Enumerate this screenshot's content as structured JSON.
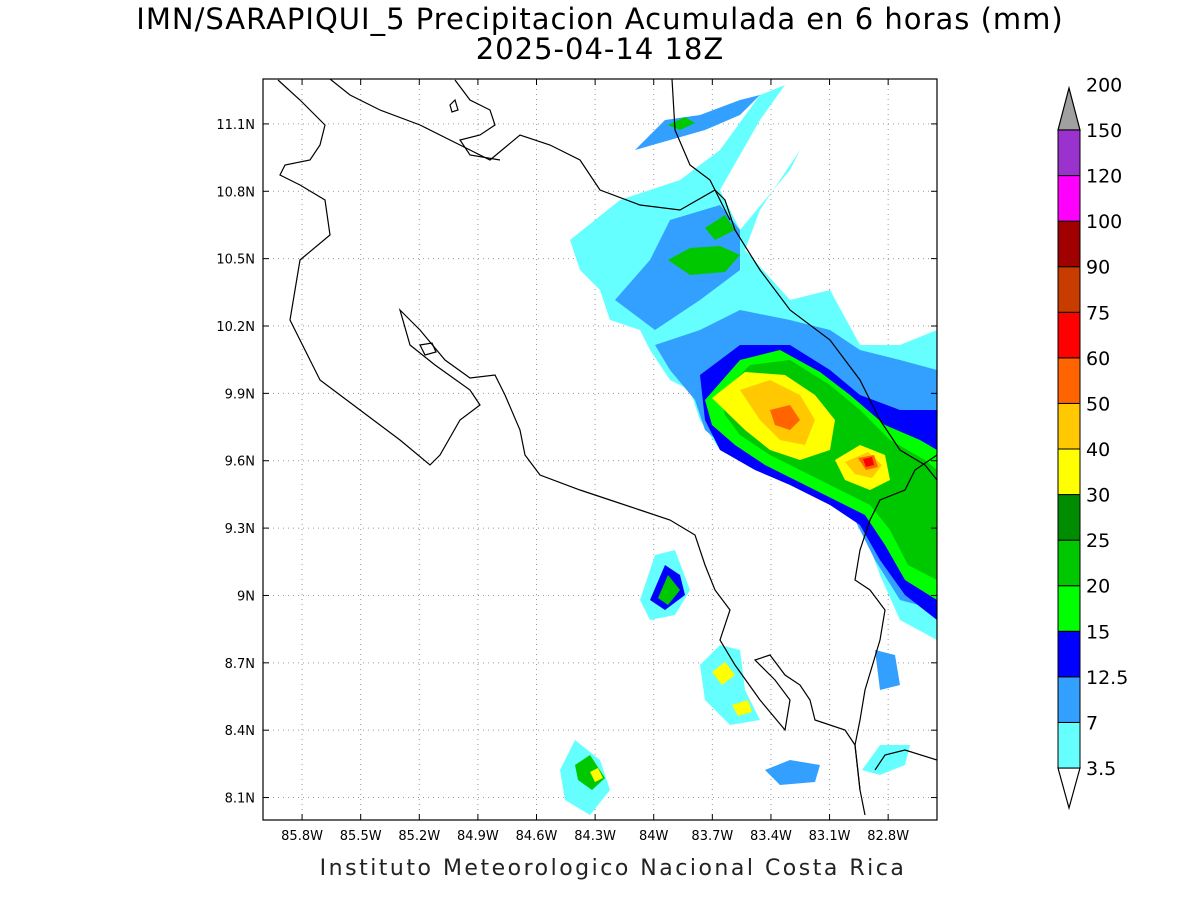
{
  "title": {
    "line1": "IMN/SARAPIQUI_5 Precipitacion Acumulada en 6 horas (mm)",
    "line2": "2025-04-14 18Z"
  },
  "footer": "Instituto Meteorologico Nacional Costa Rica",
  "axes": {
    "x_ticks": [
      "85.8W",
      "85.5W",
      "85.2W",
      "84.9W",
      "84.6W",
      "84.3W",
      "84W",
      "83.7W",
      "83.4W",
      "83.1W",
      "82.8W"
    ],
    "y_ticks": [
      "11.1N",
      "10.8N",
      "10.5N",
      "10.2N",
      "9.9N",
      "9.6N",
      "9.3N",
      "9N",
      "8.7N",
      "8.4N",
      "8.1N"
    ],
    "lon_range": [
      -86.0,
      -82.55
    ],
    "lat_range": [
      8.0,
      11.3
    ],
    "grid": "dotted"
  },
  "colorbar": {
    "labels": [
      "3.5",
      "7",
      "12.5",
      "15",
      "20",
      "25",
      "30",
      "40",
      "50",
      "60",
      "75",
      "90",
      "100",
      "120",
      "150",
      "200"
    ],
    "colors": [
      "#66ffff",
      "#33a0ff",
      "#0000ff",
      "#00ff00",
      "#00c800",
      "#008c00",
      "#ffff00",
      "#ffc800",
      "#ff6400",
      "#ff0000",
      "#c83c00",
      "#a00000",
      "#ff00ff",
      "#9a32cd",
      "#f0f0f0",
      "#a0a0a0"
    ]
  }
}
